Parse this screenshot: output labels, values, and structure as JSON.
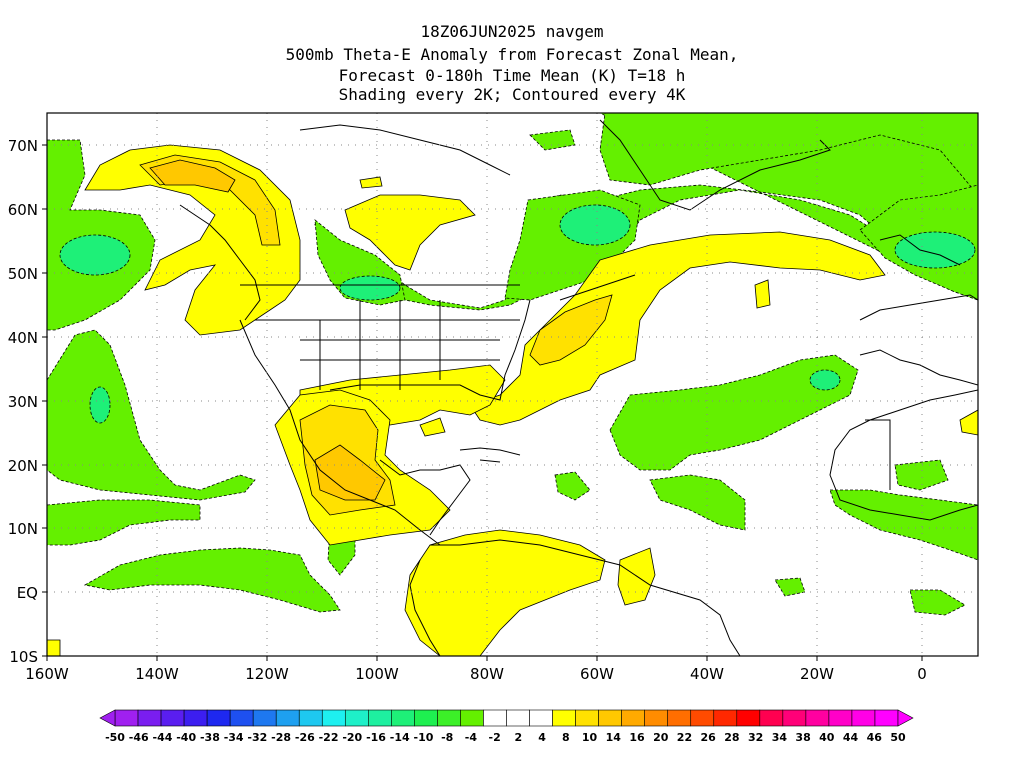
{
  "titles": {
    "line1": "18Z06JUN2025 navgem",
    "line2": "500mb Theta-E Anomaly from Forecast Zonal Mean,",
    "line3": "Forecast 0-180h Time Mean (K) T=18 h",
    "line4": "Shading every 2K; Contoured every 4K"
  },
  "axes": {
    "lat_labels": [
      "70N",
      "60N",
      "50N",
      "40N",
      "30N",
      "20N",
      "10N",
      "EQ",
      "10S"
    ],
    "lon_labels": [
      "160W",
      "140W",
      "120W",
      "100W",
      "80W",
      "60W",
      "40W",
      "20W",
      "0"
    ]
  },
  "colorbar": {
    "labels": [
      "-50",
      "-46",
      "-44",
      "-40",
      "-38",
      "-34",
      "-32",
      "-28",
      "-26",
      "-22",
      "-20",
      "-16",
      "-14",
      "-10",
      "-8",
      "-4",
      "-2",
      "2",
      "4",
      "8",
      "10",
      "14",
      "16",
      "20",
      "22",
      "26",
      "28",
      "32",
      "34",
      "38",
      "40",
      "44",
      "46",
      "50"
    ],
    "colors": [
      "#a020f0",
      "#7a1ef0",
      "#5a1ef0",
      "#3c1ef0",
      "#1e28f0",
      "#1e50f0",
      "#1e78f0",
      "#1ea0f0",
      "#1ec8f0",
      "#1ef0f0",
      "#1ef0c8",
      "#1ef0a0",
      "#1ef078",
      "#1ef050",
      "#3cf028",
      "#64f000",
      "#ffffff",
      "#ffffff",
      "#ffffff",
      "#ffff00",
      "#ffe100",
      "#ffc800",
      "#ffaa00",
      "#ff8c00",
      "#ff6e00",
      "#ff4b00",
      "#ff2800",
      "#ff0000",
      "#ff0050",
      "#ff0078",
      "#ff00a0",
      "#ff00c8",
      "#ff00e6",
      "#ff00ff"
    ]
  },
  "map_colors": {
    "green": "#64f000",
    "green_dark": "#1ef078",
    "yellow": "#ffff00",
    "yellow_mid": "#ffe100",
    "orange": "#ffaa00"
  }
}
